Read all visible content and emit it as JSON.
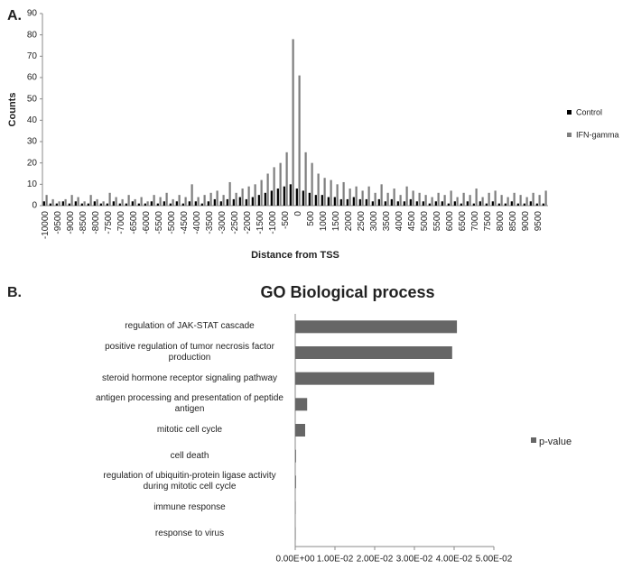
{
  "chart_data": [
    {
      "type": "bar",
      "panel": "A.",
      "ylabel": "Counts",
      "xlabel": "Distance from TSS",
      "categories": [
        "-10000",
        null,
        "-9500",
        null,
        "-9000",
        null,
        "-8500",
        null,
        "-8000",
        null,
        "-7500",
        null,
        "-7000",
        null,
        "-6500",
        null,
        "-6000",
        null,
        "-5500",
        null,
        "-5000",
        null,
        "-4500",
        null,
        "-4000",
        null,
        "-3500",
        null,
        "-3000",
        null,
        "-2500",
        null,
        "-2000",
        null,
        "-1500",
        null,
        "-1000",
        null,
        "-500",
        null,
        "0",
        null,
        "500",
        null,
        "1000",
        null,
        "1500",
        null,
        "2000",
        null,
        "2500",
        null,
        "3000",
        null,
        "3500",
        null,
        "4000",
        null,
        "4500",
        null,
        "5000",
        null,
        "5500",
        null,
        "6000",
        null,
        "6500",
        null,
        "7000",
        null,
        "7500",
        null,
        "8000",
        null,
        "8500",
        null,
        "9000",
        null,
        "9500",
        null
      ],
      "series": [
        {
          "name": "Control",
          "color": "#000000",
          "values": [
            2,
            1,
            1,
            2,
            1,
            2,
            1,
            1,
            2,
            1,
            1,
            2,
            1,
            1,
            2,
            1,
            1,
            2,
            1,
            2,
            1,
            2,
            1,
            2,
            2,
            1,
            2,
            3,
            2,
            3,
            3,
            4,
            3,
            4,
            5,
            6,
            7,
            8,
            9,
            10,
            8,
            7,
            6,
            5,
            5,
            4,
            4,
            3,
            3,
            4,
            3,
            3,
            2,
            3,
            2,
            3,
            2,
            2,
            3,
            2,
            2,
            1,
            2,
            2,
            1,
            2,
            1,
            2,
            1,
            2,
            1,
            2,
            1,
            1,
            2,
            1,
            1,
            2,
            1,
            1
          ]
        },
        {
          "name": "IFN-gamma",
          "color": "#7f7f7f",
          "values": [
            5,
            3,
            2,
            3,
            5,
            4,
            2,
            5,
            3,
            2,
            6,
            4,
            3,
            5,
            3,
            4,
            2,
            5,
            4,
            6,
            3,
            5,
            4,
            10,
            4,
            5,
            6,
            7,
            5,
            11,
            6,
            8,
            9,
            10,
            12,
            15,
            18,
            20,
            25,
            78,
            61,
            25,
            20,
            15,
            13,
            12,
            10,
            11,
            8,
            9,
            7,
            9,
            6,
            10,
            6,
            8,
            5,
            9,
            7,
            6,
            5,
            4,
            6,
            5,
            7,
            4,
            6,
            5,
            8,
            4,
            6,
            7,
            5,
            4,
            6,
            5,
            4,
            6,
            5,
            7
          ]
        }
      ],
      "ylim": [
        0,
        90
      ],
      "yticks": [
        0,
        10,
        20,
        30,
        40,
        50,
        60,
        70,
        80,
        90
      ],
      "legend": "right"
    },
    {
      "type": "hbar",
      "panel": "B.",
      "title": "GO Biological process",
      "categories": [
        "regulation of JAK-STAT cascade",
        "positive regulation of tumor necrosis factor production",
        "steroid hormone receptor signaling pathway",
        "antigen processing and presentation of peptide antigen",
        "mitotic cell cycle",
        "cell death",
        "regulation of ubiquitin-protein ligase activity during mitotic cell cycle",
        "immune response",
        "response to virus"
      ],
      "series": [
        {
          "name": "p-value",
          "color": "#666666",
          "values": [
            0.0407,
            0.0395,
            0.035,
            0.003,
            0.0025,
            0.0002,
            0.0002,
            0.0001,
            0.0001
          ]
        }
      ],
      "xlim": [
        0,
        0.05
      ],
      "xticks": [
        {
          "value": 0,
          "label": "0.00E+00"
        },
        {
          "value": 0.01,
          "label": "1.00E-02"
        },
        {
          "value": 0.02,
          "label": "2.00E-02"
        },
        {
          "value": 0.03,
          "label": "3.00E-02"
        },
        {
          "value": 0.04,
          "label": "4.00E-02"
        },
        {
          "value": 0.05,
          "label": "5.00E-02"
        }
      ],
      "legend": "right"
    }
  ]
}
